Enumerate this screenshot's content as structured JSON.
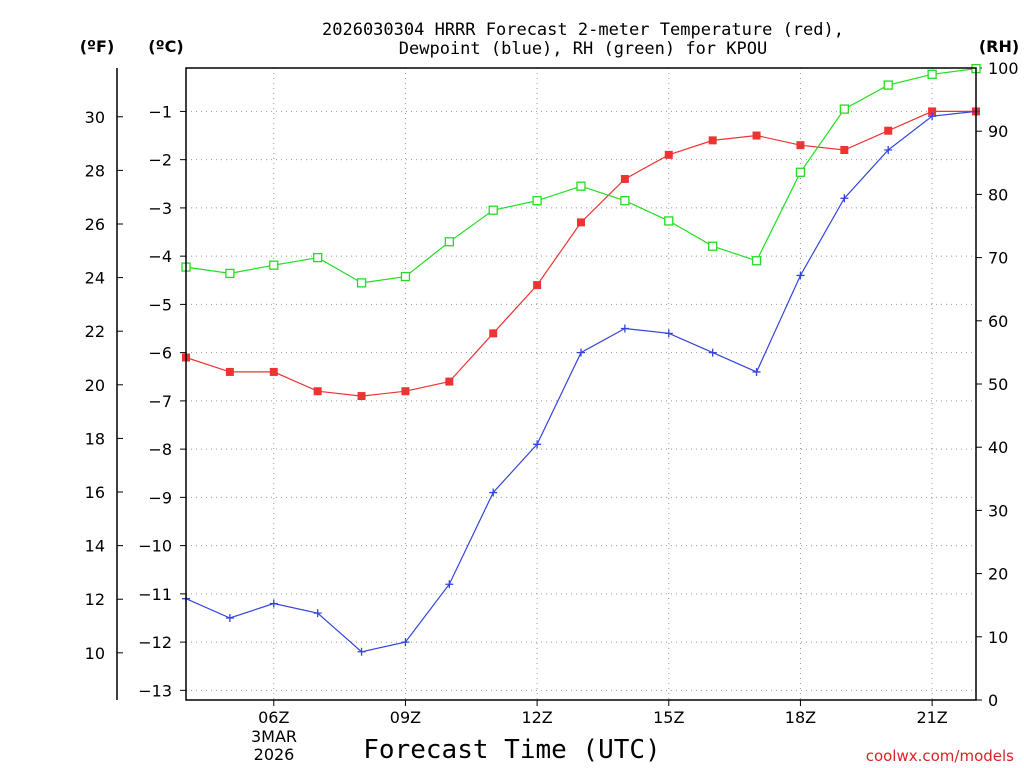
{
  "colors": {
    "temperature": "#ee3333",
    "dewpoint": "#3344dd",
    "rh": "#22dd22",
    "credit": "#dd2222",
    "grid": "#999999"
  },
  "chart_data": {
    "type": "line",
    "title_line1": "2026030304 HRRR Forecast 2-meter Temperature (red),",
    "title_line2": "Dewpoint (blue), RH (green) for KPOU",
    "xlabel": "Forecast Time (UTC)",
    "date_label_month": "3MAR",
    "date_label_year": "2026",
    "credit": "coolwx.com/models",
    "unit_labels": {
      "fahrenheit": "(ºF)",
      "celsius": "(ºC)",
      "rh": "(RH)"
    },
    "x": [
      4,
      5,
      6,
      7,
      8,
      9,
      10,
      11,
      12,
      13,
      14,
      15,
      16,
      17,
      18,
      19,
      20,
      21,
      22
    ],
    "xlim": [
      4,
      22
    ],
    "x_ticks": [
      {
        "value": 6,
        "label": "06Z"
      },
      {
        "value": 9,
        "label": "09Z"
      },
      {
        "value": 12,
        "label": "12Z"
      },
      {
        "value": 15,
        "label": "15Z"
      },
      {
        "value": 18,
        "label": "18Z"
      },
      {
        "value": 21,
        "label": "21Z"
      }
    ],
    "ylim_celsius": [
      -13.2,
      -0.1
    ],
    "ylim_rh": [
      0,
      100
    ],
    "celsius_ticks": [
      "−1",
      "−2",
      "−3",
      "−4",
      "−5",
      "−6",
      "−7",
      "−8",
      "−9",
      "−10",
      "−11",
      "−12",
      "−13"
    ],
    "celsius_tick_values": [
      -1,
      -2,
      -3,
      -4,
      -5,
      -6,
      -7,
      -8,
      -9,
      -10,
      -11,
      -12,
      -13
    ],
    "fahrenheit_ticks": [
      "30",
      "28",
      "26",
      "24",
      "22",
      "20",
      "18",
      "16",
      "14",
      "12",
      "10"
    ],
    "fahrenheit_tick_values": [
      30,
      28,
      26,
      24,
      22,
      20,
      18,
      16,
      14,
      12,
      10
    ],
    "rh_ticks": [
      "100",
      "90",
      "80",
      "70",
      "60",
      "50",
      "40",
      "30",
      "20",
      "10",
      "0"
    ],
    "rh_tick_values": [
      100,
      90,
      80,
      70,
      60,
      50,
      40,
      30,
      20,
      10,
      0
    ],
    "series": [
      {
        "name": "Temperature (°C)",
        "key": "temperature",
        "axis": "celsius",
        "marker": "filled-square",
        "values": [
          -6.1,
          -6.4,
          -6.4,
          -6.8,
          -6.9,
          -6.8,
          -6.6,
          -5.6,
          -4.6,
          -3.3,
          -2.4,
          -1.9,
          -1.6,
          -1.5,
          -1.7,
          -1.8,
          -1.4,
          -1.0,
          -1.0
        ]
      },
      {
        "name": "Dewpoint (°C)",
        "key": "dewpoint",
        "axis": "celsius",
        "marker": "plus",
        "values": [
          -11.1,
          -11.5,
          -11.2,
          -11.4,
          -12.2,
          -12.0,
          -10.8,
          -8.9,
          -7.9,
          -6.0,
          -5.5,
          -5.6,
          -6.0,
          -6.4,
          -4.4,
          -2.8,
          -1.8,
          -1.1,
          -1.0
        ]
      },
      {
        "name": "RH (%)",
        "key": "rh",
        "axis": "rh",
        "marker": "open-square",
        "values": [
          68.5,
          67.5,
          68.8,
          70.0,
          66.0,
          67.0,
          72.5,
          77.5,
          79.0,
          81.3,
          79.0,
          75.8,
          71.8,
          69.5,
          83.5,
          93.5,
          97.3,
          99.0,
          99.9
        ]
      }
    ]
  }
}
